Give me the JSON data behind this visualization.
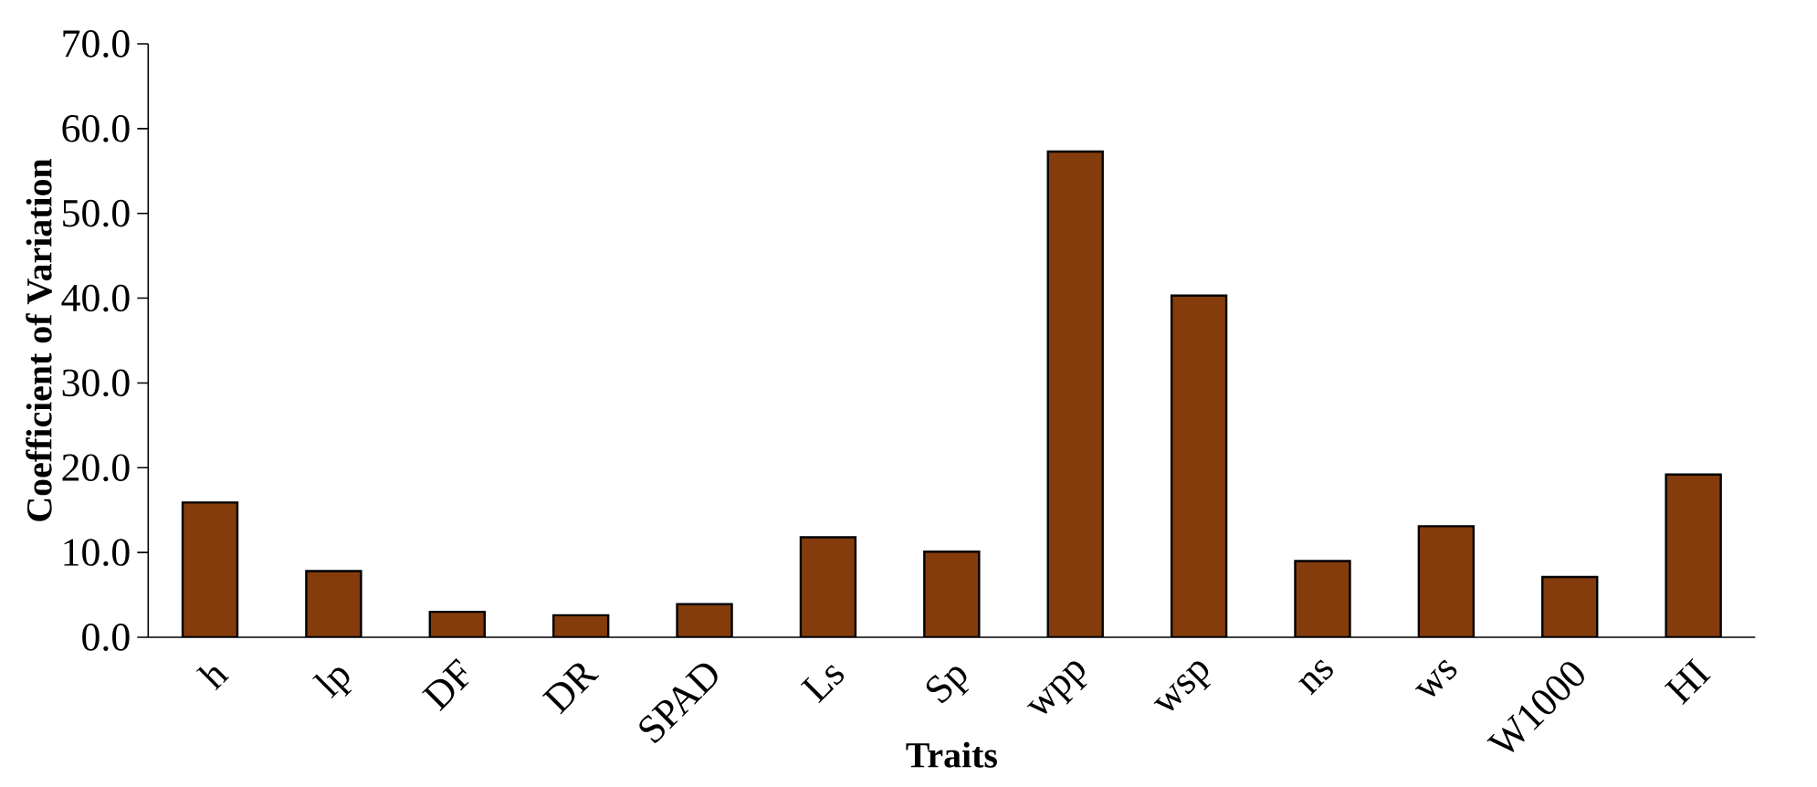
{
  "chart_data": {
    "type": "bar",
    "xlabel": "Traits",
    "ylabel": "Coefficient of Variation",
    "categories": [
      "h",
      "lp",
      "DF",
      "DR",
      "SPAD",
      "Ls",
      "Sp",
      "wpp",
      "wsp",
      "ns",
      "ws",
      "W1000",
      "HI"
    ],
    "values": [
      15.9,
      7.8,
      3.0,
      2.6,
      3.9,
      11.8,
      10.1,
      57.3,
      40.3,
      9.0,
      13.1,
      7.1,
      19.2
    ],
    "color": "#843c0c",
    "ylim": [
      0,
      70
    ],
    "yticks": [
      {
        "value": 0,
        "label": "0.0"
      },
      {
        "value": 10,
        "label": "10.0"
      },
      {
        "value": 20,
        "label": "20.0"
      },
      {
        "value": 30,
        "label": "30.0"
      },
      {
        "value": 40,
        "label": "40.0"
      },
      {
        "value": 50,
        "label": "50.0"
      },
      {
        "value": 60,
        "label": "60.0"
      },
      {
        "value": 70,
        "label": "70.0"
      }
    ],
    "grid": false
  }
}
